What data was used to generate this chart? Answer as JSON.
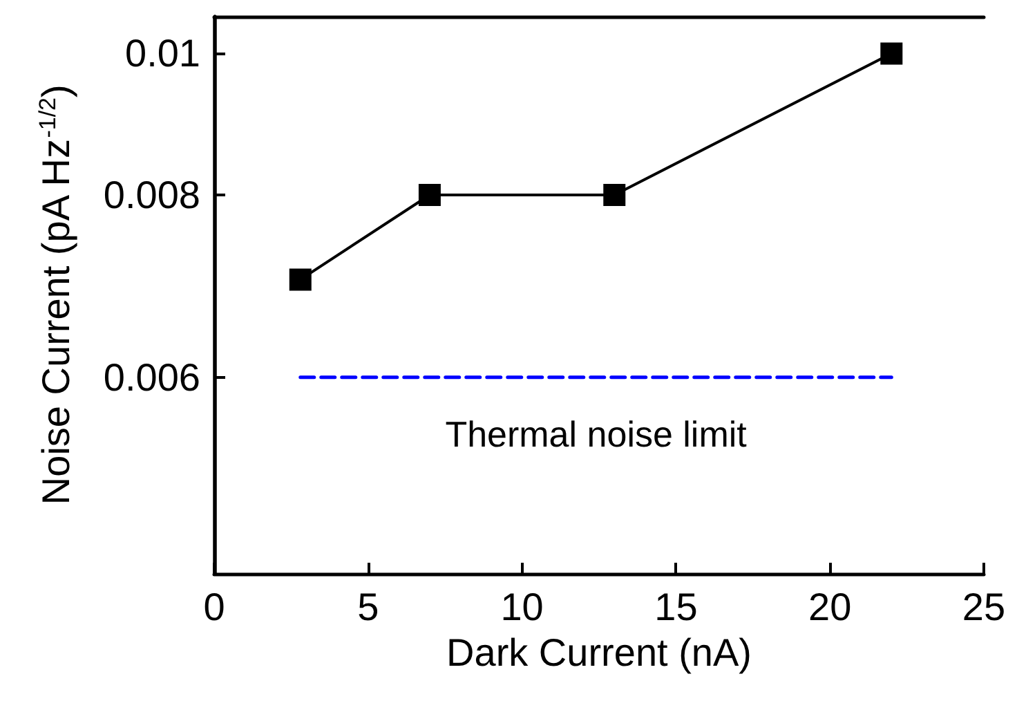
{
  "chart_data": {
    "type": "line",
    "xlabel": "Dark Current (nA)",
    "ylabel": "Noise Current (pA Hz$^{-1/2}$)",
    "x": [
      2.8,
      7,
      13,
      22
    ],
    "series": [
      {
        "color": "#000000",
        "values": [
          0.007,
          0.008,
          0.008,
          0.01
        ],
        "marker": "square",
        "line_style": "solid"
      },
      {
        "name": "Thermal noise limit",
        "color": "#0000ff",
        "x": [
          2.8,
          22
        ],
        "values": [
          0.006,
          0.006
        ],
        "marker": "none",
        "line_style": "dashed"
      }
    ],
    "xlim": [
      0,
      25
    ],
    "xticks": [
      0,
      5,
      10,
      15,
      20,
      25
    ],
    "ylim": [
      0.0044,
      0.0106
    ],
    "yticks": [
      0.006,
      0.008,
      0.01
    ],
    "log": "y",
    "grid": false,
    "legend": false
  }
}
